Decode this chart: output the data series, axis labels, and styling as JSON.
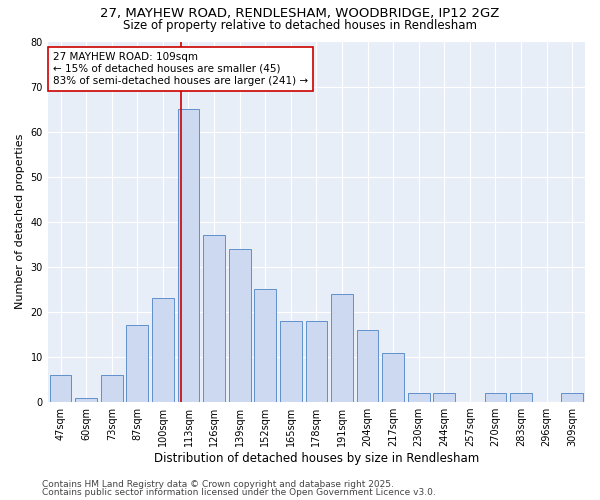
{
  "title_line1": "27, MAYHEW ROAD, RENDLESHAM, WOODBRIDGE, IP12 2GZ",
  "title_line2": "Size of property relative to detached houses in Rendlesham",
  "xlabel": "Distribution of detached houses by size in Rendlesham",
  "ylabel": "Number of detached properties",
  "footer_line1": "Contains HM Land Registry data © Crown copyright and database right 2025.",
  "footer_line2": "Contains public sector information licensed under the Open Government Licence v3.0.",
  "categories": [
    "47sqm",
    "60sqm",
    "73sqm",
    "87sqm",
    "100sqm",
    "113sqm",
    "126sqm",
    "139sqm",
    "152sqm",
    "165sqm",
    "178sqm",
    "191sqm",
    "204sqm",
    "217sqm",
    "230sqm",
    "244sqm",
    "257sqm",
    "270sqm",
    "283sqm",
    "296sqm",
    "309sqm"
  ],
  "values": [
    6,
    1,
    6,
    17,
    23,
    65,
    37,
    34,
    25,
    18,
    18,
    24,
    16,
    11,
    2,
    2,
    0,
    2,
    2,
    0,
    2
  ],
  "bar_color": "#ccd9f0",
  "bar_edge_color": "#6090cc",
  "background_color": "#e8eef8",
  "grid_color": "#ffffff",
  "ylim": [
    0,
    80
  ],
  "yticks": [
    0,
    10,
    20,
    30,
    40,
    50,
    60,
    70,
    80
  ],
  "annotation_text": "27 MAYHEW ROAD: 109sqm\n← 15% of detached houses are smaller (45)\n83% of semi-detached houses are larger (241) →",
  "vline_x_index": 4.7,
  "annotation_box_color": "#ffffff",
  "annotation_box_edge_color": "#cc0000",
  "vline_color": "#cc0000",
  "title_fontsize": 9.5,
  "subtitle_fontsize": 8.5,
  "annotation_fontsize": 7.5,
  "xlabel_fontsize": 8.5,
  "ylabel_fontsize": 8.0,
  "tick_fontsize": 7.0,
  "footer_fontsize": 6.5
}
